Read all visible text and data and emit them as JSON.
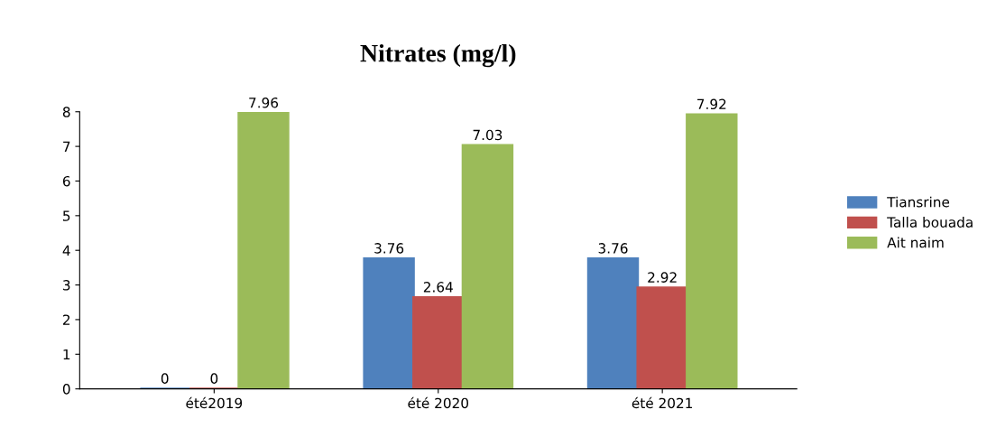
{
  "chart_data": {
    "type": "bar",
    "title": "Nitrates (mg/l)",
    "categories": [
      "été2019",
      "été 2020",
      "été 2021"
    ],
    "series": [
      {
        "name": "Tiansrine",
        "color": "#4f81bd",
        "values": [
          0,
          3.76,
          3.76
        ]
      },
      {
        "name": "Talla bouada",
        "color": "#c0504d",
        "values": [
          0,
          2.64,
          2.92
        ]
      },
      {
        "name": "Ait naim",
        "color": "#9bbb59",
        "values": [
          7.96,
          7.03,
          7.92
        ]
      }
    ],
    "ylim": [
      0,
      8
    ],
    "yticks": [
      0,
      1,
      2,
      3,
      4,
      5,
      6,
      7,
      8
    ],
    "data_labels": true,
    "legend": "right",
    "grid": false
  }
}
